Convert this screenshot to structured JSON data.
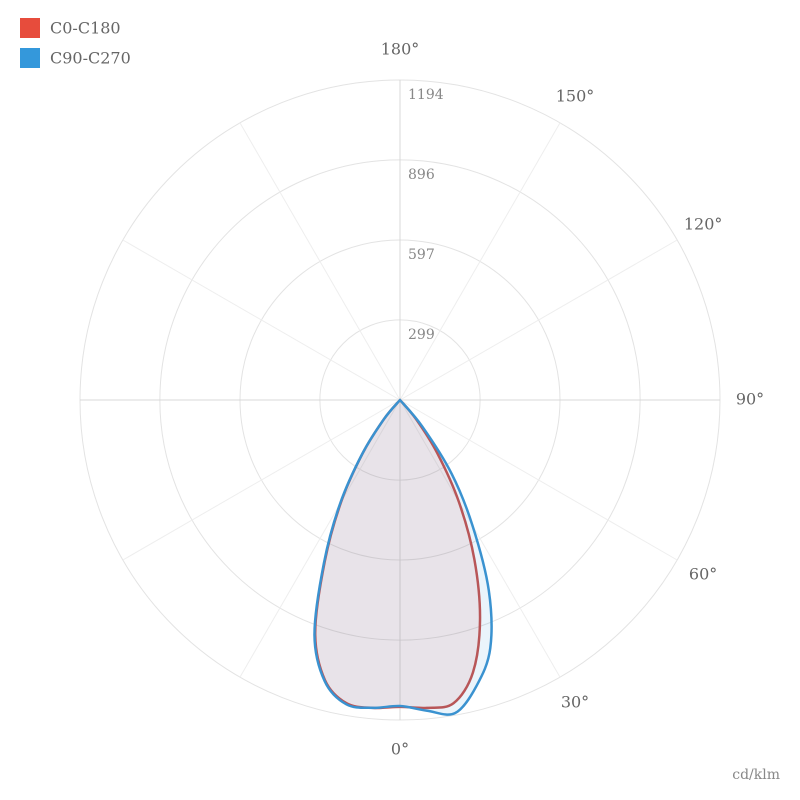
{
  "chart_data": {
    "type": "polar",
    "unit": "cd/klm",
    "legend": "top-left",
    "grid": true,
    "theta": [
      -45,
      -40,
      -35,
      -30,
      -25,
      -20,
      -15,
      -10,
      -5,
      0,
      5,
      10,
      15,
      20,
      25,
      30,
      35,
      40,
      45
    ],
    "series": [
      {
        "name": "C0-C180",
        "color": "#e74c3c",
        "line_color": "#c8504a",
        "values": [
          0,
          93,
          243,
          440,
          664,
          925,
          1082,
          1149,
          1153,
          1145,
          1153,
          1149,
          1052,
          873,
          657,
          440,
          243,
          93,
          0
        ]
      },
      {
        "name": "C90-C270",
        "color": "#3498db",
        "line_color": "#3a92d0",
        "values": [
          0,
          93,
          246,
          448,
          672,
          933,
          1086,
          1153,
          1153,
          1142,
          1164,
          1186,
          1104,
          985,
          784,
          541,
          336,
          130,
          0
        ]
      }
    ],
    "rlim": [
      0,
      1194
    ],
    "rticks": [
      299,
      597,
      896,
      1194
    ],
    "thetaticks": [
      {
        "value": 0,
        "label": "0°"
      },
      {
        "value": 30,
        "label": "30°"
      },
      {
        "value": 60,
        "label": "60°"
      },
      {
        "value": 90,
        "label": "90°"
      },
      {
        "value": 120,
        "label": "120°"
      },
      {
        "value": 150,
        "label": "150°"
      },
      {
        "value": 180,
        "label": "180°"
      }
    ]
  }
}
